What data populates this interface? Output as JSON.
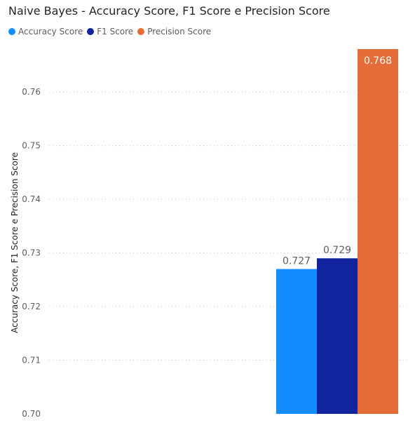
{
  "chart_data": {
    "type": "bar",
    "title": "Naive Bayes - Accuracy Score, F1 Score e Precision Score",
    "ylabel": "Accuracy Score, F1 Score e Precision Score",
    "xlabel": "",
    "ylim": [
      0.7,
      0.768
    ],
    "yticks": [
      "0.70",
      "0.71",
      "0.72",
      "0.73",
      "0.74",
      "0.75",
      "0.76"
    ],
    "grid": true,
    "legend_position": "top-left",
    "categories": [
      ""
    ],
    "series": [
      {
        "name": "Accuracy Score",
        "values": [
          0.727
        ],
        "label": "0.727",
        "color": "#118DFF"
      },
      {
        "name": "F1 Score",
        "values": [
          0.729
        ],
        "label": "0.729",
        "color": "#12239E"
      },
      {
        "name": "Precision Score",
        "values": [
          0.768
        ],
        "label": "0.768",
        "color": "#E66C37"
      }
    ]
  }
}
